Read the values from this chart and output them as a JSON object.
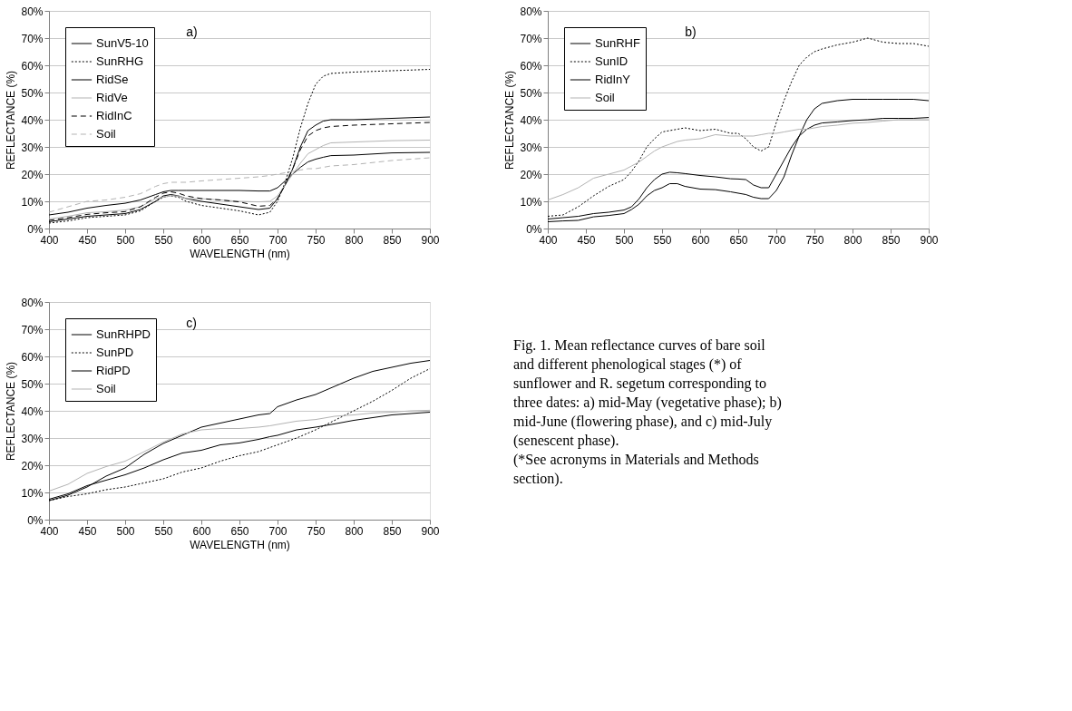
{
  "chart_data": [
    {
      "type": "line",
      "xlabel": "WAVELENGTH  (nm)",
      "ylabel": "REFLECTANCE  (%)",
      "annotations": [
        "a)"
      ],
      "legend": "top left",
      "grid": "y",
      "x": [
        400,
        425,
        450,
        475,
        500,
        520,
        540,
        550,
        560,
        570,
        580,
        600,
        625,
        650,
        675,
        690,
        700,
        710,
        720,
        730,
        740,
        750,
        760,
        770,
        800,
        850,
        900
      ],
      "xlim": [
        400,
        900
      ],
      "xticks": [
        400,
        450,
        500,
        550,
        600,
        650,
        700,
        750,
        800,
        850,
        900
      ],
      "ylim": [
        0,
        80
      ],
      "yticks": [
        {
          "value": 0,
          "label": "0%"
        },
        {
          "value": 10,
          "label": "10%"
        },
        {
          "value": 20,
          "label": "20%"
        },
        {
          "value": 30,
          "label": "30%"
        },
        {
          "value": 40,
          "label": "40%"
        },
        {
          "value": 50,
          "label": "50%"
        },
        {
          "value": 60,
          "label": "60%"
        },
        {
          "value": 70,
          "label": "70%"
        },
        {
          "value": 80,
          "label": "80%"
        }
      ],
      "series": [
        {
          "name": "SunV5-10",
          "color": "#000000",
          "line_style": "solid",
          "values": [
            2.5,
            3.5,
            4.5,
            5,
            5.5,
            7,
            10,
            12,
            12.5,
            12,
            11,
            10,
            9,
            8,
            7,
            7.5,
            11,
            16,
            22,
            30,
            36,
            38,
            39.5,
            40,
            40,
            40.5,
            41
          ]
        },
        {
          "name": "SunRHG",
          "color": "#000000",
          "line_style": "dotted",
          "values": [
            2,
            2.8,
            4,
            4.5,
            5,
            6.5,
            10,
            11.5,
            12,
            11.5,
            10,
            8.5,
            7.5,
            6.5,
            5,
            6,
            10,
            17,
            26,
            37,
            46,
            53,
            56,
            57,
            57.5,
            58,
            58.5
          ]
        },
        {
          "name": "RidSe",
          "color": "#000000",
          "line_style": "solid",
          "values": [
            5,
            6,
            7.5,
            8.5,
            9.3,
            10.5,
            12.5,
            13.5,
            14,
            14,
            14,
            14,
            14,
            14,
            13.8,
            13.8,
            15,
            17.5,
            20,
            22.5,
            24.5,
            25.5,
            26.2,
            26.8,
            27,
            27.8,
            28
          ]
        },
        {
          "name": "RidVe",
          "color": "#b3b3b3",
          "line_style": "solid",
          "values": [
            3.5,
            4.5,
            5.8,
            6.2,
            6.8,
            8,
            11,
            11.5,
            12,
            12,
            11,
            11,
            10.5,
            10,
            9.8,
            10,
            12,
            16,
            20,
            24,
            27.5,
            29,
            30.5,
            31.5,
            31.8,
            32.3,
            32.5
          ]
        },
        {
          "name": "RidInC",
          "color": "#000000",
          "line_style": "dashed",
          "values": [
            3,
            4,
            5.2,
            5.8,
            6.2,
            8,
            11.5,
            13,
            13.5,
            13,
            12,
            11,
            10.5,
            9.8,
            8.2,
            8.5,
            11,
            16,
            22,
            29,
            34,
            36,
            37,
            37.5,
            38,
            38.5,
            39
          ]
        },
        {
          "name": "Soil",
          "color": "#b3b3b3",
          "line_style": "dashed",
          "values": [
            6,
            8,
            10,
            10.5,
            11.5,
            12.8,
            15.5,
            16.5,
            17,
            17,
            17,
            17.5,
            18,
            18.5,
            19,
            19.5,
            20,
            20.5,
            21,
            21.5,
            22,
            22,
            22.5,
            23,
            23.5,
            25,
            26
          ]
        }
      ]
    },
    {
      "type": "line",
      "ylabel": "REFLECTANCE  (%)",
      "annotations": [
        "b)"
      ],
      "legend": "top left",
      "grid": "y",
      "x": [
        400,
        420,
        440,
        460,
        480,
        500,
        510,
        520,
        530,
        540,
        550,
        560,
        570,
        580,
        600,
        620,
        640,
        650,
        660,
        670,
        680,
        690,
        700,
        710,
        720,
        730,
        740,
        750,
        760,
        780,
        800,
        820,
        840,
        860,
        880,
        900
      ],
      "xlim": [
        400,
        900
      ],
      "xticks": [
        400,
        450,
        500,
        550,
        600,
        650,
        700,
        750,
        800,
        850,
        900
      ],
      "ylim": [
        0,
        80
      ],
      "yticks": [
        {
          "value": 0,
          "label": "0%"
        },
        {
          "value": 10,
          "label": "10%"
        },
        {
          "value": 20,
          "label": "20%"
        },
        {
          "value": 30,
          "label": "30%"
        },
        {
          "value": 40,
          "label": "40%"
        },
        {
          "value": 50,
          "label": "50%"
        },
        {
          "value": 60,
          "label": "60%"
        },
        {
          "value": 70,
          "label": "70%"
        },
        {
          "value": 80,
          "label": "80%"
        }
      ],
      "series": [
        {
          "name": "SunRHF",
          "color": "#000000",
          "line_style": "solid",
          "values": [
            2.5,
            2.8,
            3,
            4.3,
            4.8,
            5.5,
            7,
            9,
            12,
            14,
            15,
            16.5,
            16.5,
            15.5,
            14.5,
            14.3,
            13.5,
            13,
            12.5,
            11.5,
            11,
            11,
            14,
            19,
            27,
            34,
            40,
            44,
            46,
            47,
            47.5,
            47.5,
            47.5,
            47.5,
            47.5,
            47
          ]
        },
        {
          "name": "SunID",
          "color": "#000000",
          "line_style": "dotted",
          "values": [
            4.5,
            5,
            8,
            12,
            15.5,
            18,
            21,
            25,
            30,
            33,
            35.5,
            36,
            36.5,
            37,
            36,
            36.5,
            35,
            35,
            33,
            30,
            28.5,
            30,
            39,
            47,
            54,
            60,
            63,
            65,
            66,
            67.5,
            68.5,
            70,
            68.5,
            68,
            68,
            67
          ]
        },
        {
          "name": "RidInY",
          "color": "#000000",
          "line_style": "solid",
          "values": [
            3.5,
            4,
            4.5,
            5.5,
            6,
            6.8,
            8,
            11,
            15,
            18,
            20,
            20.7,
            20.5,
            20.2,
            19.5,
            19,
            18.3,
            18.2,
            18,
            16,
            15,
            15,
            20,
            25,
            30,
            34,
            36.5,
            38,
            38.8,
            39.2,
            39.7,
            40,
            40.5,
            40.5,
            40.5,
            40.8
          ]
        },
        {
          "name": "Soil",
          "color": "#b3b3b3",
          "line_style": "solid",
          "values": [
            10.5,
            12.5,
            15,
            18.5,
            20,
            21.5,
            23,
            24.5,
            26.5,
            28.5,
            30,
            31,
            32,
            32.5,
            33,
            34.5,
            34,
            34,
            34,
            34,
            34.5,
            35,
            35,
            35.5,
            36,
            36.5,
            36.5,
            37,
            37.5,
            38,
            38.7,
            39,
            39.5,
            40,
            40,
            40
          ]
        }
      ]
    },
    {
      "type": "line",
      "xlabel": "WAVELENGTH  (nm)",
      "ylabel": "REFLECTANCE  (%)",
      "annotations": [
        "c)"
      ],
      "legend": "top left",
      "grid": "y",
      "x": [
        400,
        425,
        450,
        475,
        500,
        525,
        550,
        575,
        600,
        625,
        650,
        675,
        690,
        700,
        725,
        750,
        775,
        800,
        825,
        850,
        875,
        900
      ],
      "xlim": [
        400,
        900
      ],
      "xticks": [
        400,
        450,
        500,
        550,
        600,
        650,
        700,
        750,
        800,
        850,
        900
      ],
      "ylim": [
        0,
        80
      ],
      "yticks": [
        {
          "value": 0,
          "label": "0%"
        },
        {
          "value": 10,
          "label": "10%"
        },
        {
          "value": 20,
          "label": "20%"
        },
        {
          "value": 30,
          "label": "30%"
        },
        {
          "value": 40,
          "label": "40%"
        },
        {
          "value": 50,
          "label": "50%"
        },
        {
          "value": 60,
          "label": "60%"
        },
        {
          "value": 70,
          "label": "70%"
        },
        {
          "value": 80,
          "label": "80%"
        }
      ],
      "series": [
        {
          "name": "SunRHPD",
          "color": "#000000",
          "line_style": "solid",
          "values": [
            7,
            9,
            12,
            16,
            19,
            24,
            28,
            31,
            34,
            35.5,
            37,
            38.5,
            39,
            41.5,
            44,
            46,
            49,
            52,
            54.5,
            56,
            57.5,
            58.5
          ]
        },
        {
          "name": "SunPD",
          "color": "#000000",
          "line_style": "dotted",
          "values": [
            7,
            8.5,
            9.5,
            11,
            12,
            13.5,
            15,
            17.5,
            19,
            21.5,
            23.5,
            25,
            26.5,
            27.5,
            30,
            33,
            36.5,
            40,
            43.5,
            47.5,
            52,
            55.5
          ]
        },
        {
          "name": "RidPD",
          "color": "#000000",
          "line_style": "solid",
          "values": [
            7.5,
            9.5,
            12.5,
            14.5,
            16.5,
            19,
            22,
            24.5,
            25.5,
            27.5,
            28.2,
            29.5,
            30.5,
            31,
            33,
            34,
            35.2,
            36.5,
            37.5,
            38.5,
            39,
            39.5
          ]
        },
        {
          "name": "Soil",
          "color": "#b3b3b3",
          "line_style": "solid",
          "values": [
            10.5,
            13,
            17,
            19.5,
            21.5,
            25,
            28.5,
            31.5,
            33,
            33.5,
            33.5,
            34,
            34.5,
            35,
            36.2,
            36.8,
            38,
            38.5,
            39.2,
            39.5,
            40,
            40.2
          ]
        }
      ]
    },
    {
      "type": "other",
      "annotations": [
        "Fig. 1. Mean reflectance curves of bare soil and different phenological stages (*) of sunflower and R. segetum corresponding to three dates: a) mid-May (vegetative phase); b) mid-June (flowering phase), and c) mid-July (senescent phase).",
        "(*See acronyms in Materials and Methods section)."
      ]
    }
  ]
}
